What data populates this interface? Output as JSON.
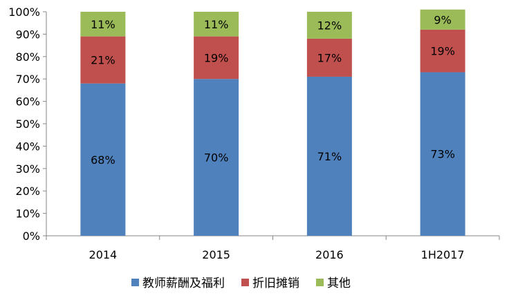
{
  "chart_data": {
    "type": "bar",
    "stacked": true,
    "categories": [
      "2014",
      "2015",
      "2016",
      "1H2017"
    ],
    "series": [
      {
        "name": "教师薪酬及福利",
        "values": [
          68,
          70,
          71,
          73
        ],
        "labels": [
          "68%",
          "70%",
          "71%",
          "73%"
        ],
        "color": "#4F81BD"
      },
      {
        "name": "折旧摊销",
        "values": [
          21,
          19,
          17,
          19
        ],
        "labels": [
          "21%",
          "19%",
          "17%",
          "19%"
        ],
        "color": "#C0504D"
      },
      {
        "name": "其他",
        "values": [
          11,
          11,
          12,
          9
        ],
        "labels": [
          "11%",
          "11%",
          "12%",
          "9%"
        ],
        "color": "#9BBB59"
      }
    ],
    "ylim": [
      0,
      100
    ],
    "yticks": [
      "0%",
      "10%",
      "20%",
      "30%",
      "40%",
      "50%",
      "60%",
      "70%",
      "80%",
      "90%",
      "100%"
    ],
    "grid": false,
    "legend_position": "bottom",
    "title": "",
    "xlabel": "",
    "ylabel": ""
  }
}
